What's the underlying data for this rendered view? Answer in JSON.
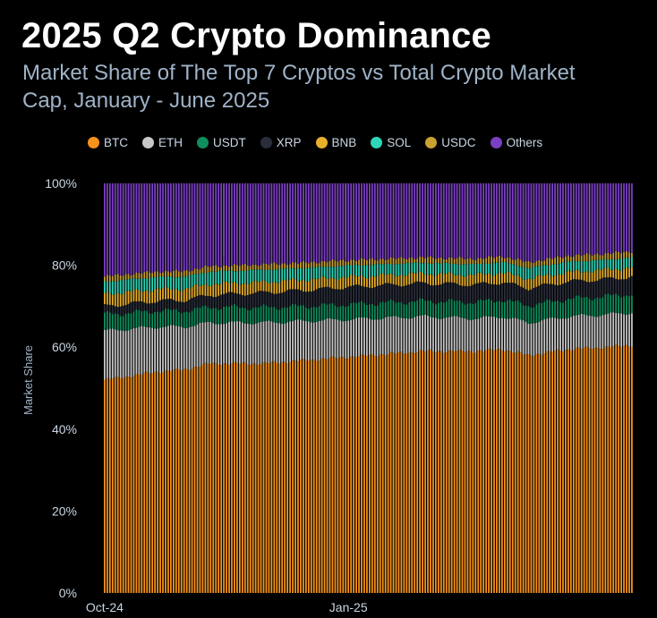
{
  "chart_data": {
    "type": "bar",
    "stacked": true,
    "title": "2025 Q2 Crypto Dominance",
    "subtitle": "Market Share of The Top 7 Cryptos vs Total Crypto Market Cap, January - June 2025",
    "xlabel": "",
    "ylabel": "Market Share",
    "ylim": [
      0,
      100
    ],
    "yticks": [
      "0%",
      "20%",
      "40%",
      "60%",
      "80%",
      "100%"
    ],
    "ytick_values": [
      0,
      20,
      40,
      60,
      80,
      100
    ],
    "xtick_labels": [
      "Oct-24",
      "Jan-25"
    ],
    "xtick_indices": [
      0,
      92
    ],
    "legend_position": "top",
    "n_bars": 200,
    "grid": false,
    "series": [
      {
        "name": "BTC",
        "color": "#f7931a",
        "anchors": [
          [
            0,
            52
          ],
          [
            20,
            54
          ],
          [
            30,
            54.5
          ],
          [
            40,
            56
          ],
          [
            60,
            56
          ],
          [
            80,
            57
          ],
          [
            100,
            58
          ],
          [
            120,
            59
          ],
          [
            140,
            59
          ],
          [
            150,
            59.5
          ],
          [
            160,
            58
          ],
          [
            175,
            59.5
          ],
          [
            190,
            60
          ],
          [
            199,
            60.5
          ]
        ]
      },
      {
        "name": "ETH",
        "color": "#c8c8c8",
        "anchors": [
          [
            0,
            12
          ],
          [
            20,
            11
          ],
          [
            40,
            10
          ],
          [
            60,
            10
          ],
          [
            80,
            9.5
          ],
          [
            100,
            9
          ],
          [
            120,
            8.5
          ],
          [
            140,
            8
          ],
          [
            160,
            8
          ],
          [
            180,
            8
          ],
          [
            199,
            8
          ]
        ]
      },
      {
        "name": "USDT",
        "color": "#0e8f5e",
        "anchors": [
          [
            0,
            4
          ],
          [
            40,
            3.8
          ],
          [
            80,
            3.6
          ],
          [
            120,
            3.8
          ],
          [
            160,
            4.2
          ],
          [
            199,
            4.5
          ]
        ]
      },
      {
        "name": "XRP",
        "color": "#2a2e3b",
        "anchors": [
          [
            0,
            2
          ],
          [
            30,
            2.6
          ],
          [
            60,
            3.6
          ],
          [
            90,
            4.2
          ],
          [
            120,
            4.3
          ],
          [
            160,
            4.2
          ],
          [
            199,
            4.2
          ]
        ]
      },
      {
        "name": "BNB",
        "color": "#e9b02a",
        "anchors": [
          [
            0,
            3
          ],
          [
            60,
            2.6
          ],
          [
            120,
            2.4
          ],
          [
            199,
            2.3
          ]
        ]
      },
      {
        "name": "SOL",
        "color": "#2ed6b8",
        "anchors": [
          [
            0,
            3
          ],
          [
            60,
            3
          ],
          [
            120,
            2.6
          ],
          [
            160,
            2.6
          ],
          [
            199,
            2.4
          ]
        ]
      },
      {
        "name": "USDC",
        "color": "#c9a032",
        "anchors": [
          [
            0,
            1.3
          ],
          [
            60,
            1.3
          ],
          [
            120,
            1.3
          ],
          [
            199,
            1.5
          ]
        ]
      },
      {
        "name": "Others",
        "color": "#7b3fc4",
        "remainder": true
      }
    ]
  }
}
